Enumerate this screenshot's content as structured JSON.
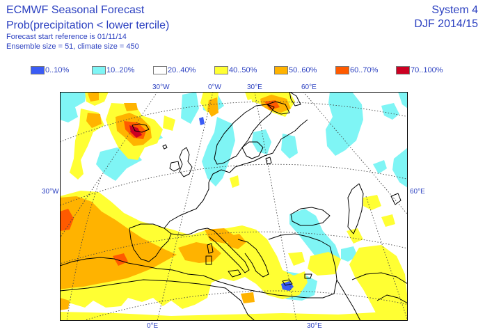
{
  "header": {
    "title": "ECMWF Seasonal Forecast",
    "subtitle": "Prob(precipitation < lower tercile)",
    "start_ref": "Forecast start reference is 01/11/14",
    "ensemble": "Ensemble size = 51, climate size = 450",
    "system": "System 4",
    "period": "DJF 2014/15"
  },
  "legend": [
    {
      "label": "0..10%",
      "color": "#3a5cf5"
    },
    {
      "label": "10..20%",
      "color": "#7ff5f5"
    },
    {
      "label": "20..40%",
      "color": "#ffffff"
    },
    {
      "label": "40..50%",
      "color": "#ffff33"
    },
    {
      "label": "50..60%",
      "color": "#ffb300"
    },
    {
      "label": "60..70%",
      "color": "#ff5a00"
    },
    {
      "label": "70..100%",
      "color": "#cc0022"
    }
  ],
  "map": {
    "top_labels": [
      "30°W",
      "0°W",
      "30°E",
      "60°E"
    ],
    "left_label": "30°W",
    "right_label": "60°E",
    "bottom_labels": [
      "0°E",
      "30°E"
    ]
  }
}
